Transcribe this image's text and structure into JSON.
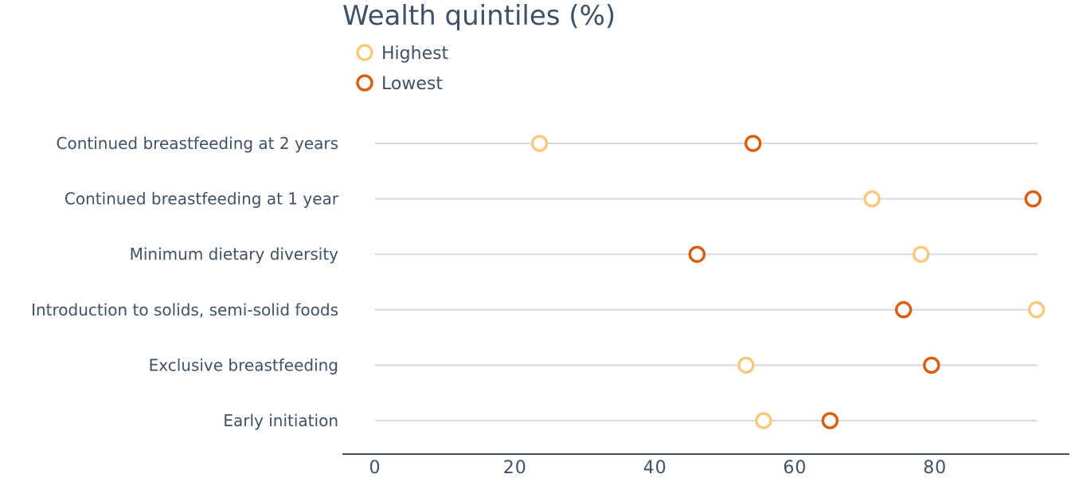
{
  "chart_data": {
    "type": "scatter",
    "title": "Wealth quintiles (%)",
    "categories": [
      "Continued breastfeeding at 2 years",
      "Continued breastfeeding at 1 year",
      "Minimum dietary diversity",
      "Introduction to solids, semi-solid foods",
      "Exclusive breastfeeding",
      "Early initiation"
    ],
    "series": [
      {
        "name": "Highest",
        "color": "#f6c97e",
        "values": [
          23.5,
          71,
          78,
          94.5,
          53,
          55.5
        ]
      },
      {
        "name": "Lowest",
        "color": "#d95f0e",
        "values": [
          54,
          94,
          46,
          75.5,
          79.5,
          65
        ]
      }
    ],
    "xticks": [
      "0",
      "20",
      "40",
      "60",
      "80"
    ],
    "xlim": [
      0,
      94.5
    ],
    "legend_position": "top-left",
    "grid": "horizontal category lines"
  }
}
